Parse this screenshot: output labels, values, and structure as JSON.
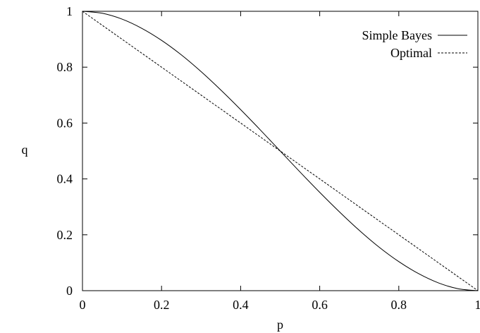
{
  "chart_data": {
    "type": "line",
    "title": "",
    "xlabel": "p",
    "ylabel": "q",
    "xlim": [
      0,
      1
    ],
    "ylim": [
      0,
      1
    ],
    "grid": false,
    "legend_position": "top-right",
    "x_ticks": [
      {
        "value": 0,
        "label": "0"
      },
      {
        "value": 0.2,
        "label": "0.2"
      },
      {
        "value": 0.4,
        "label": "0.4"
      },
      {
        "value": 0.6,
        "label": "0.6"
      },
      {
        "value": 0.8,
        "label": "0.8"
      },
      {
        "value": 1,
        "label": "1"
      }
    ],
    "y_ticks": [
      {
        "value": 0,
        "label": "0"
      },
      {
        "value": 0.2,
        "label": "0.2"
      },
      {
        "value": 0.4,
        "label": "0.4"
      },
      {
        "value": 0.6,
        "label": "0.6"
      },
      {
        "value": 0.8,
        "label": "0.8"
      },
      {
        "value": 1,
        "label": "1"
      }
    ],
    "series": [
      {
        "name": "Simple Bayes",
        "style": "solid",
        "color": "#000000",
        "x": [
          0,
          0.05,
          0.1,
          0.15,
          0.2,
          0.25,
          0.3,
          0.35,
          0.4,
          0.45,
          0.5,
          0.55,
          0.6,
          0.65,
          0.7,
          0.75,
          0.8,
          0.85,
          0.9,
          0.95,
          1
        ],
        "y": [
          1,
          0.993,
          0.972,
          0.939,
          0.896,
          0.844,
          0.784,
          0.718,
          0.648,
          0.575,
          0.5,
          0.425,
          0.352,
          0.282,
          0.216,
          0.156,
          0.104,
          0.061,
          0.028,
          0.007,
          0
        ]
      },
      {
        "name": "Optimal",
        "style": "dashed",
        "color": "#000000",
        "x": [
          0,
          1
        ],
        "y": [
          1,
          0
        ]
      }
    ]
  }
}
